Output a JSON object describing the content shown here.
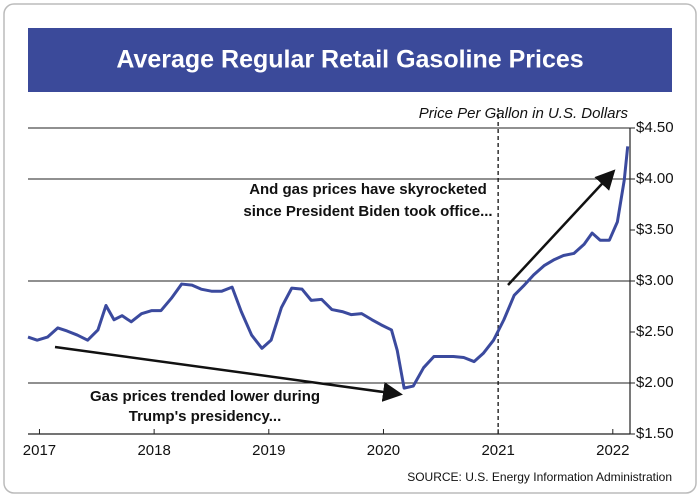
{
  "chart_data": {
    "type": "line",
    "title": "Average Regular Retail Gasoline Prices",
    "y_label": "Price Per Gallon in U.S. Dollars",
    "source": "SOURCE: U.S. Energy Information Administration",
    "annotations": [
      [
        "And gas prices have skyrocketed",
        "since President Biden took office..."
      ],
      [
        "Gas prices trended lower during",
        "Trump's presidency..."
      ]
    ],
    "x": [
      2016.9,
      2016.98,
      2017.07,
      2017.16,
      2017.24,
      2017.33,
      2017.42,
      2017.51,
      2017.58,
      2017.65,
      2017.72,
      2017.8,
      2017.89,
      2017.98,
      2018.06,
      2018.15,
      2018.24,
      2018.33,
      2018.41,
      2018.5,
      2018.59,
      2018.68,
      2018.76,
      2018.85,
      2018.94,
      2019.02,
      2019.11,
      2019.2,
      2019.29,
      2019.37,
      2019.46,
      2019.55,
      2019.64,
      2019.72,
      2019.81,
      2019.9,
      2019.98,
      2020.07,
      2020.12,
      2020.18,
      2020.26,
      2020.35,
      2020.44,
      2020.53,
      2020.61,
      2020.7,
      2020.79,
      2020.87,
      2020.96,
      2021.05,
      2021.14,
      2021.22,
      2021.31,
      2021.4,
      2021.49,
      2021.57,
      2021.66,
      2021.75,
      2021.82,
      2021.89,
      2021.97,
      2022.04,
      2022.1,
      2022.13
    ],
    "series": [
      {
        "color": "#3b4a9e",
        "values": [
          2.45,
          2.42,
          2.45,
          2.54,
          2.51,
          2.47,
          2.42,
          2.52,
          2.76,
          2.62,
          2.66,
          2.6,
          2.68,
          2.71,
          2.71,
          2.83,
          2.97,
          2.96,
          2.92,
          2.9,
          2.9,
          2.94,
          2.7,
          2.47,
          2.34,
          2.42,
          2.74,
          2.93,
          2.92,
          2.81,
          2.82,
          2.72,
          2.7,
          2.67,
          2.68,
          2.62,
          2.57,
          2.52,
          2.32,
          1.95,
          1.97,
          2.15,
          2.26,
          2.26,
          2.26,
          2.25,
          2.21,
          2.29,
          2.42,
          2.62,
          2.86,
          2.95,
          3.06,
          3.15,
          3.21,
          3.25,
          3.27,
          3.36,
          3.47,
          3.4,
          3.4,
          3.58,
          3.99,
          4.32
        ]
      }
    ],
    "xlim": [
      2016.9,
      2022.15
    ],
    "xticks": [
      2017,
      2018,
      2019,
      2020,
      2021,
      2022
    ],
    "ylim": [
      1.5,
      4.5
    ],
    "yticks": [
      {
        "value": 1.5,
        "label": "$1.50"
      },
      {
        "value": 2,
        "label": "$2.00"
      },
      {
        "value": 2.5,
        "label": "$2.50"
      },
      {
        "value": 3,
        "label": "$3.00"
      },
      {
        "value": 3.5,
        "label": "$3.50"
      },
      {
        "value": 4,
        "label": "$4.00"
      },
      {
        "value": 4.5,
        "label": "$4.50"
      }
    ],
    "grid_values": [
      2,
      3,
      4,
      4.5
    ]
  }
}
